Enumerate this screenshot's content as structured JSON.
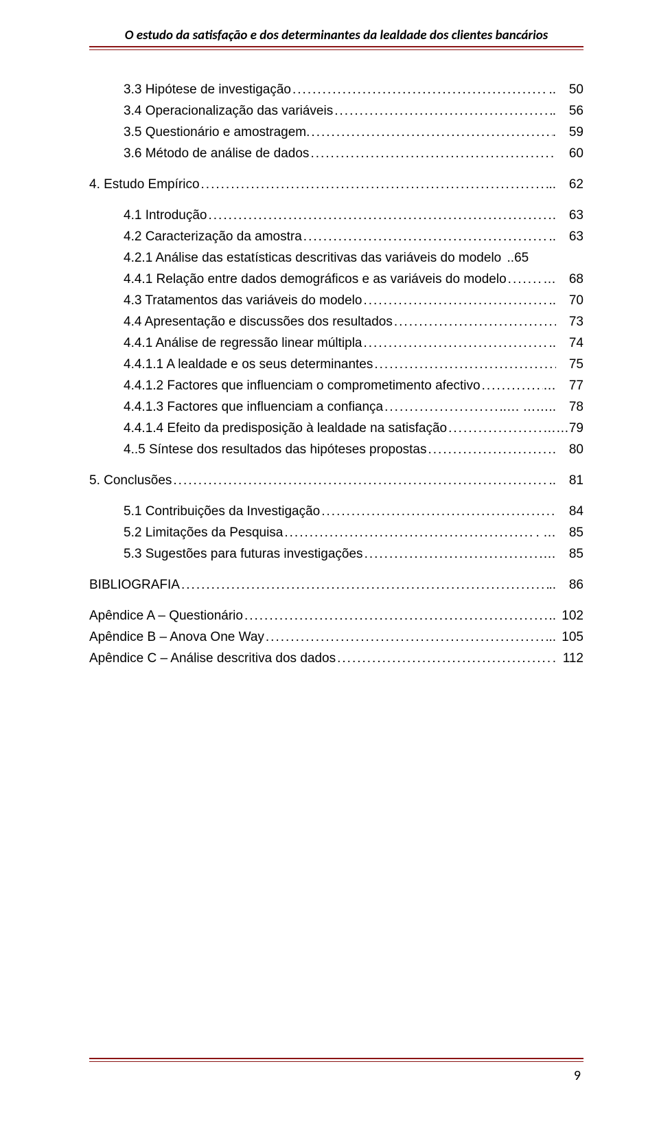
{
  "header": {
    "title": "O estudo da satisfação e dos determinantes da lealdade dos clientes bancários"
  },
  "toc": [
    {
      "label": "3.3 Hipótese de investigação",
      "page": "50",
      "indent": 1,
      "trailing": ".."
    },
    {
      "label": "3.4 Operacionalização das variáveis",
      "page": "56",
      "indent": 1,
      "trailing": "."
    },
    {
      "label": "3.5 Questionário e amostragem.",
      "page": "59",
      "indent": 1,
      "trailing": "."
    },
    {
      "label": "3.6 Método de análise de dados",
      "page": "60",
      "indent": 1,
      "trailing": ""
    },
    {
      "gap": true
    },
    {
      "label": "4. Estudo Empírico",
      "page": "62",
      "indent": 0,
      "trailing": ".."
    },
    {
      "gap": true
    },
    {
      "label": "4.1 Introdução",
      "page": "63",
      "indent": 1,
      "trailing": "."
    },
    {
      "label": "4.2 Caracterização da amostra",
      "page": "63",
      "indent": 1,
      "trailing": ".."
    },
    {
      "label": "4.2.1 Análise das estatísticas descritivas das variáveis do modelo",
      "page": "..65",
      "indent": 1,
      "noleader": true
    },
    {
      "label": "4.4.1 Relação entre dados demográficos e as variáveis do modelo",
      "page": "68",
      "indent": 1,
      "trailing": "…"
    },
    {
      "label": "4.3 Tratamentos das variáveis do modelo",
      "page": "70",
      "indent": 1,
      "trailing": ".."
    },
    {
      "label": "4.4 Apresentação e discussões dos resultados",
      "page": "73",
      "indent": 1,
      "trailing": ""
    },
    {
      "label": "4.4.1 Análise de regressão linear múltipla",
      "page": "74",
      "indent": 1,
      "trailing": ".."
    },
    {
      "label": "4.4.1.1 A lealdade e os seus  determinantes",
      "page": "75",
      "indent": 1,
      "trailing": ""
    },
    {
      "label": "4.4.1.2 Factores que influenciam o comprometimento afectivo",
      "page": "77",
      "indent": 1,
      "trailing": "…"
    },
    {
      "label": "4.4.1.3 Factores que influenciam a confiança",
      "page": "78",
      "indent": 1,
      "trailing": "…. …….."
    },
    {
      "label": "4.4.1.4 Efeito da predisposição à lealdade na satisfação",
      "page": "…79",
      "indent": 1,
      "trailing": "…"
    },
    {
      "label": "4..5 Síntese dos resultados das hipóteses propostas",
      "page": "80",
      "indent": 1,
      "trailing": "."
    },
    {
      "gap": true
    },
    {
      "label": "5. Conclusões",
      "page": "81",
      "indent": 0,
      "trailing": ".."
    },
    {
      "gap": true
    },
    {
      "label": "5.1 Contribuições da Investigação",
      "page": "84",
      "indent": 1,
      "trailing": ""
    },
    {
      "label": "5.2 Limitações da Pesquisa",
      "page": "85",
      "indent": 1,
      "trailing": ". …"
    },
    {
      "label": "5.3 Sugestões para  futuras investigações",
      "page": "85",
      "indent": 1,
      "trailing": "…"
    },
    {
      "gap": true
    },
    {
      "label": "BIBLIOGRAFIA",
      "page": "86",
      "indent": 0,
      "trailing": ".."
    },
    {
      "gap": true
    },
    {
      "label": "Apêndice A – Questionário",
      "page": "102",
      "indent": 0,
      "trailing": ".."
    },
    {
      "label": "Apêndice B – Anova One Way",
      "page": "105",
      "indent": 0,
      "trailing": ".."
    },
    {
      "label": "Apêndice C – Análise descritiva dos dados",
      "page": "112",
      "indent": 0,
      "trailing": "."
    }
  ],
  "footer": {
    "page_number": "9"
  },
  "colors": {
    "rule": "#8b1414",
    "text": "#000000",
    "background": "#ffffff"
  },
  "typography": {
    "header_font": "Calibri",
    "body_font": "Arial",
    "body_size_pt": 14,
    "header_size_pt": 14
  }
}
